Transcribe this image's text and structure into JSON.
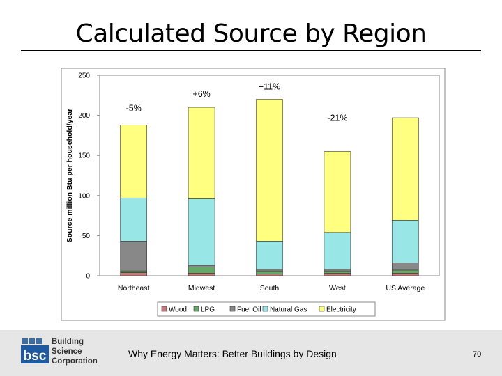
{
  "slide": {
    "title": "Calculated Source by Region",
    "footer": "Why Energy Matters: Better Buildings by Design",
    "page_number": "70"
  },
  "logo": {
    "mark": "bsc",
    "line1": "Building",
    "line2": "Science",
    "line3": "Corporation"
  },
  "chart_data": {
    "type": "bar",
    "stacked": true,
    "title": "",
    "xlabel": "",
    "ylabel": "Source million Btu per household/year",
    "ylim": [
      0,
      250
    ],
    "yticks": [
      0,
      50,
      100,
      150,
      200,
      250
    ],
    "grid": false,
    "legend_position": "bottom",
    "categories": [
      "Northeast",
      "Midwest",
      "South",
      "West",
      "US Average"
    ],
    "series": [
      {
        "name": "Wood",
        "color": "#c87a7a",
        "values": [
          4,
          3,
          2,
          3,
          3
        ]
      },
      {
        "name": "LPG",
        "color": "#66a866",
        "values": [
          2,
          8,
          4,
          3,
          4
        ]
      },
      {
        "name": "Fuel Oil",
        "color": "#888888",
        "values": [
          37,
          2,
          2,
          2,
          9
        ]
      },
      {
        "name": "Natural Gas",
        "color": "#99e6e6",
        "values": [
          54,
          83,
          35,
          46,
          53
        ]
      },
      {
        "name": "Electricity",
        "color": "#ffff80",
        "values": [
          91,
          114,
          177,
          101,
          128
        ]
      }
    ],
    "annotations": [
      "-5%",
      "+6%",
      "+11%",
      "-21%",
      ""
    ],
    "annotation_offsets": [
      20,
      15,
      14,
      44,
      0
    ]
  }
}
